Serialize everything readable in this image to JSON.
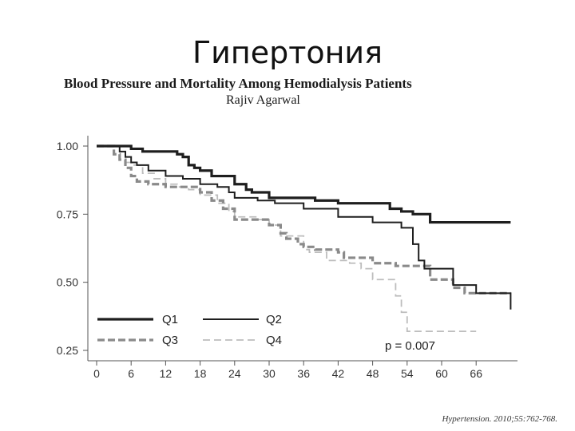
{
  "slide": {
    "title": "Гипертония"
  },
  "figure": {
    "title": "Blood Pressure and Mortality Among Hemodialysis Patients",
    "author": "Rajiv Agarwal"
  },
  "citation": "Hypertension. 2010;55:762-768.",
  "chart_data": {
    "type": "line",
    "step": true,
    "title": "",
    "xlabel": "",
    "ylabel": "",
    "xlim": [
      0,
      72
    ],
    "ylim": [
      0.25,
      1.0
    ],
    "xticks": [
      0,
      6,
      12,
      18,
      24,
      30,
      36,
      42,
      48,
      54,
      60,
      66
    ],
    "yticks": [
      0.25,
      0.5,
      0.75,
      1.0
    ],
    "ytick_labels": [
      "0.25",
      "0.50",
      "0.75",
      "1.00"
    ],
    "legend_position": "bottom-left",
    "annotation": "p = 0.007",
    "series": [
      {
        "name": "Q1",
        "color": "#1e1e1e",
        "style": "solid-thick",
        "x": [
          0,
          2,
          6,
          8,
          13,
          14,
          15,
          16,
          17,
          18,
          20,
          21,
          24,
          26,
          27,
          30,
          38,
          42,
          49,
          51,
          53,
          55,
          58,
          64,
          72
        ],
        "y": [
          1.0,
          1.0,
          0.99,
          0.98,
          0.98,
          0.97,
          0.96,
          0.93,
          0.92,
          0.91,
          0.89,
          0.89,
          0.86,
          0.84,
          0.83,
          0.81,
          0.8,
          0.79,
          0.79,
          0.77,
          0.76,
          0.75,
          0.72,
          0.72,
          0.72
        ]
      },
      {
        "name": "Q2",
        "color": "#1e1e1e",
        "style": "solid-thin",
        "x": [
          0,
          4,
          5,
          6,
          7,
          9,
          12,
          15,
          18,
          21,
          23,
          24,
          28,
          31,
          36,
          42,
          48,
          53,
          55,
          56,
          57,
          58,
          62,
          66,
          72
        ],
        "y": [
          1.0,
          0.98,
          0.96,
          0.94,
          0.93,
          0.91,
          0.89,
          0.88,
          0.86,
          0.85,
          0.83,
          0.81,
          0.8,
          0.79,
          0.77,
          0.74,
          0.72,
          0.7,
          0.64,
          0.58,
          0.55,
          0.55,
          0.49,
          0.46,
          0.4
        ]
      },
      {
        "name": "Q3",
        "color": "#8a8a8a",
        "style": "dashed-thick",
        "x": [
          0,
          3,
          4,
          5,
          6,
          7,
          9,
          12,
          18,
          20,
          22,
          24,
          26,
          30,
          32,
          33,
          35,
          36,
          38,
          40,
          42,
          43,
          48,
          52,
          58,
          62,
          64,
          72
        ],
        "y": [
          1.0,
          0.97,
          0.95,
          0.92,
          0.89,
          0.87,
          0.86,
          0.85,
          0.83,
          0.8,
          0.77,
          0.73,
          0.73,
          0.71,
          0.68,
          0.66,
          0.64,
          0.63,
          0.62,
          0.62,
          0.61,
          0.59,
          0.57,
          0.56,
          0.51,
          0.48,
          0.46,
          0.46
        ]
      },
      {
        "name": "Q4",
        "color": "#bdbdbd",
        "style": "dashed-thin",
        "x": [
          0,
          5,
          6,
          8,
          10,
          12,
          14,
          16,
          18,
          21,
          23,
          24,
          28,
          30,
          32,
          36,
          37,
          40,
          44,
          46,
          48,
          50,
          52,
          53,
          54,
          57,
          62,
          66
        ],
        "y": [
          1.0,
          0.94,
          0.93,
          0.9,
          0.88,
          0.86,
          0.85,
          0.84,
          0.82,
          0.79,
          0.76,
          0.74,
          0.73,
          0.71,
          0.67,
          0.62,
          0.61,
          0.58,
          0.57,
          0.55,
          0.51,
          0.51,
          0.45,
          0.39,
          0.32,
          0.32,
          0.32,
          0.32
        ]
      }
    ]
  }
}
